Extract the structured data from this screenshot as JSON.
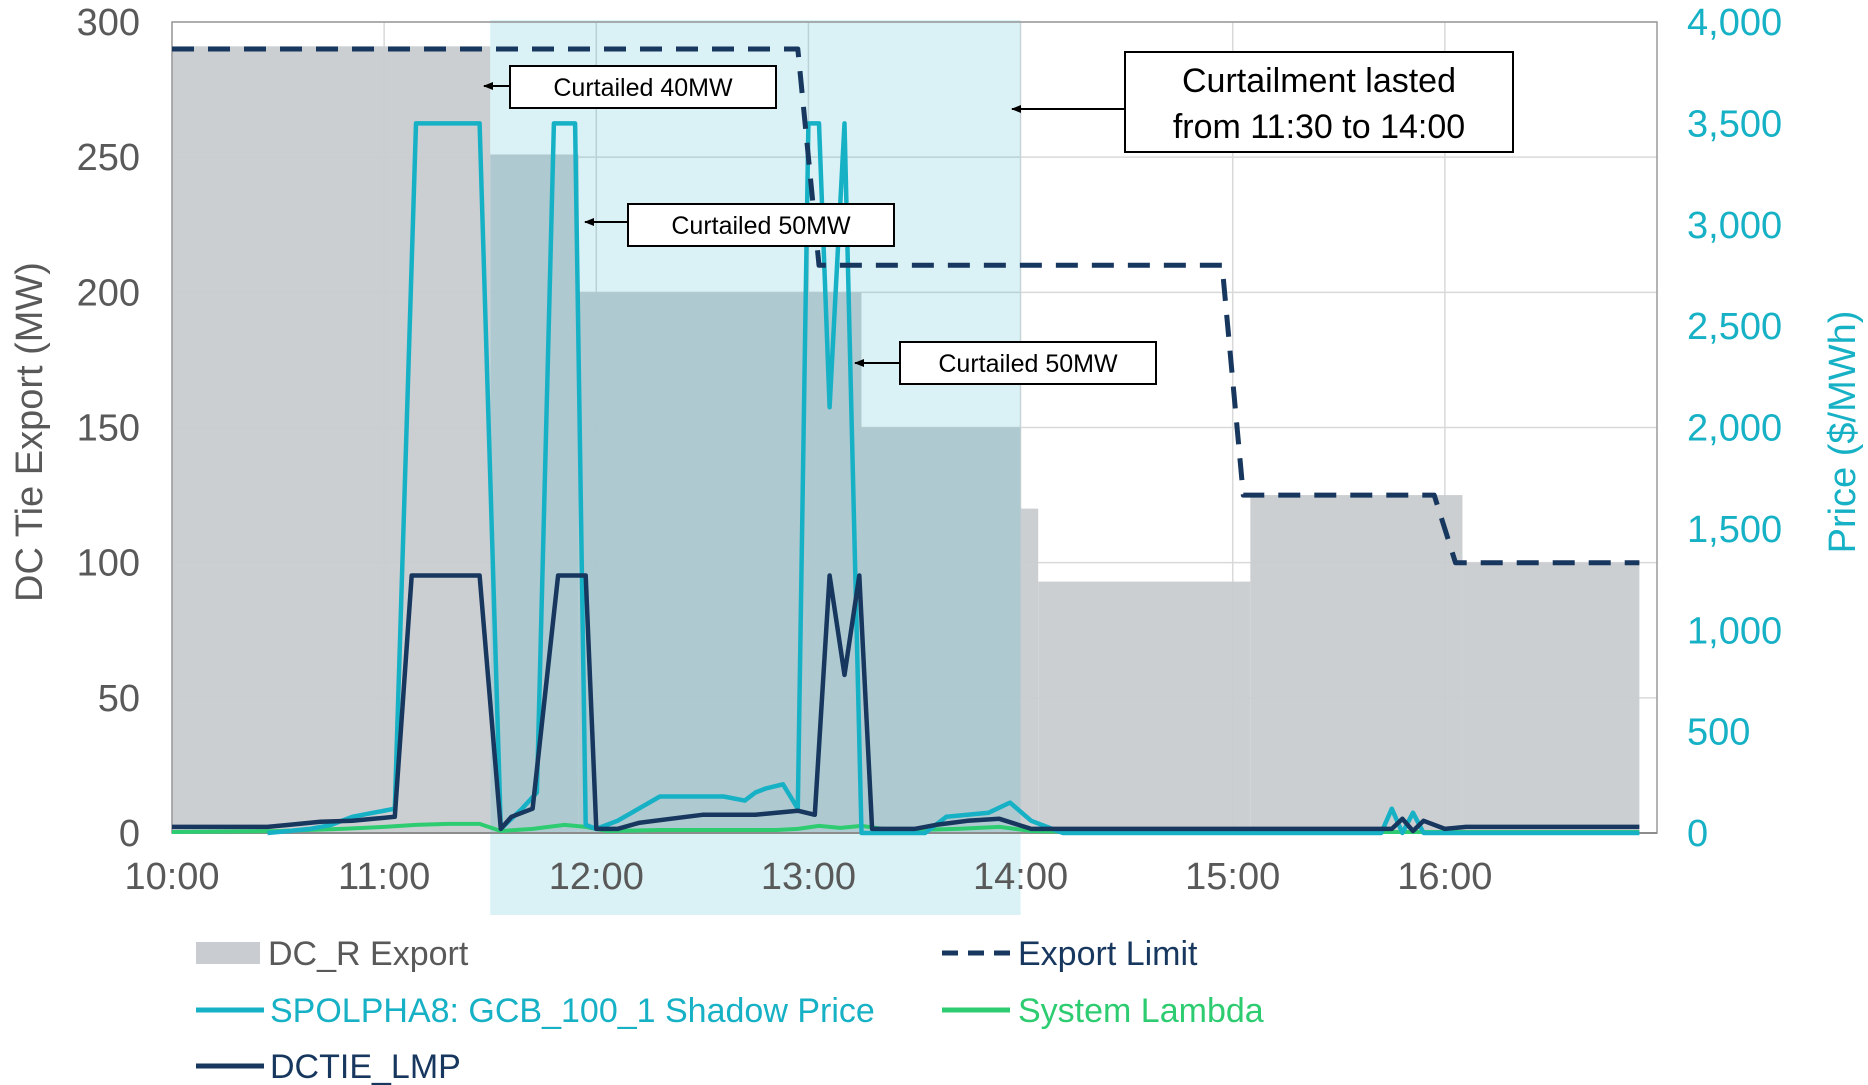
{
  "chart_data": {
    "type": "bar+line",
    "x_ticks": [
      "10:00",
      "11:00",
      "12:00",
      "13:00",
      "14:00",
      "15:00",
      "16:00"
    ],
    "x_range_hours": [
      10.0,
      17.0
    ],
    "left_axis": {
      "label": "DC Tie Export (MW)",
      "ticks": [
        "0",
        "50",
        "100",
        "150",
        "200",
        "250",
        "300"
      ],
      "range": [
        0,
        300
      ]
    },
    "right_axis": {
      "label": "Price ($/MWh)",
      "ticks": [
        "0",
        "500",
        "1,000",
        "1,500",
        "2,000",
        "2,500",
        "3,000",
        "3,500",
        "4,000"
      ],
      "range": [
        0,
        4000
      ]
    },
    "curtailment_window": [
      11.5,
      14.0
    ],
    "series": [
      {
        "name": "DC_R Export",
        "type": "area-step",
        "axis": "left",
        "color": "#c9ccd0",
        "steps": [
          [
            10.0,
            11.5,
            291
          ],
          [
            11.5,
            11.917,
            251
          ],
          [
            11.917,
            13.25,
            200
          ],
          [
            13.25,
            14.0,
            150
          ],
          [
            14.0,
            14.083,
            120
          ],
          [
            14.083,
            15.083,
            93
          ],
          [
            15.083,
            16.083,
            125
          ],
          [
            16.083,
            16.917,
            100
          ]
        ]
      },
      {
        "name": "Export Limit",
        "type": "line-dashed",
        "axis": "left",
        "color": "#17375e",
        "x": [
          10.0,
          12.95,
          13.05,
          13.05,
          13.95,
          13.95,
          14.95,
          15.05,
          15.05,
          15.95,
          16.05,
          16.05,
          16.917
        ],
        "y": [
          290,
          290,
          210,
          210,
          210,
          210,
          210,
          125,
          125,
          125,
          100,
          100,
          100
        ]
      },
      {
        "name": "SPOLPHA8: GCB_100_1 Shadow Price",
        "type": "line",
        "axis": "right",
        "color": "#17b1c6",
        "x": [
          10.45,
          10.55,
          10.65,
          10.75,
          10.85,
          10.95,
          11.05,
          11.15,
          11.25,
          11.35,
          11.45,
          11.55,
          11.65,
          11.72,
          11.8,
          11.85,
          11.9,
          11.95,
          12.0,
          12.1,
          12.2,
          12.3,
          12.4,
          12.5,
          12.6,
          12.7,
          12.75,
          12.8,
          12.88,
          12.95,
          13.0,
          13.05,
          13.1,
          13.17,
          13.25,
          13.3,
          13.35,
          13.45,
          13.55,
          13.65,
          13.75,
          13.85,
          13.95,
          14.05,
          14.2,
          15.0,
          15.7,
          15.75,
          15.8,
          15.85,
          15.9,
          15.95,
          16.0,
          16.1,
          16.3,
          16.917
        ],
        "y": [
          0,
          10,
          20,
          40,
          80,
          100,
          120,
          3500,
          3500,
          3500,
          3500,
          20,
          120,
          200,
          3500,
          3500,
          3500,
          40,
          20,
          60,
          120,
          180,
          180,
          180,
          180,
          160,
          200,
          220,
          240,
          120,
          3500,
          3500,
          2100,
          3500,
          0,
          0,
          0,
          0,
          0,
          80,
          90,
          100,
          150,
          60,
          0,
          0,
          0,
          120,
          0,
          100,
          0,
          0,
          0,
          0,
          0,
          0
        ]
      },
      {
        "name": "System Lambda",
        "type": "line",
        "axis": "right",
        "color": "#2ecc71",
        "x": [
          10.0,
          10.5,
          10.8,
          11.0,
          11.15,
          11.3,
          11.45,
          11.55,
          11.7,
          11.85,
          11.95,
          12.05,
          12.3,
          12.6,
          12.85,
          12.95,
          13.05,
          13.15,
          13.25,
          13.35,
          13.5,
          13.7,
          13.9,
          14.05,
          14.3,
          15.0,
          16.0,
          16.917
        ],
        "y": [
          5,
          10,
          20,
          30,
          40,
          45,
          45,
          10,
          20,
          40,
          30,
          10,
          15,
          15,
          15,
          20,
          35,
          25,
          35,
          20,
          15,
          20,
          30,
          10,
          5,
          5,
          5,
          5
        ]
      },
      {
        "name": "DCTIE_LMP",
        "type": "line",
        "axis": "right",
        "color": "#17375e",
        "x": [
          10.0,
          10.45,
          10.55,
          10.7,
          10.85,
          10.95,
          11.05,
          11.13,
          11.25,
          11.35,
          11.45,
          11.55,
          11.6,
          11.7,
          11.82,
          11.88,
          11.95,
          12.0,
          12.1,
          12.2,
          12.35,
          12.5,
          12.65,
          12.75,
          12.85,
          12.95,
          13.03,
          13.1,
          13.17,
          13.24,
          13.3,
          13.4,
          13.5,
          13.6,
          13.75,
          13.9,
          14.05,
          14.2,
          15.0,
          15.7,
          15.75,
          15.8,
          15.85,
          15.9,
          16.0,
          16.1,
          16.5,
          16.917
        ],
        "y": [
          30,
          30,
          40,
          55,
          60,
          70,
          80,
          1270,
          1270,
          1270,
          1270,
          20,
          80,
          120,
          1270,
          1270,
          1270,
          20,
          20,
          50,
          70,
          90,
          90,
          90,
          100,
          110,
          90,
          1270,
          780,
          1270,
          20,
          20,
          20,
          40,
          60,
          70,
          20,
          20,
          20,
          20,
          20,
          70,
          10,
          60,
          20,
          30,
          30,
          30
        ]
      }
    ],
    "annotations": [
      {
        "text": "Curtailed 40MW"
      },
      {
        "text": "Curtailed 50MW"
      },
      {
        "text": "Curtailed 50MW"
      },
      {
        "text_lines": [
          "Curtailment lasted",
          "from 11:30 to 14:00"
        ]
      }
    ],
    "legend": {
      "placement": "bottom",
      "items": [
        "DC_R Export",
        "Export Limit",
        "SPOLPHA8: GCB_100_1 Shadow Price",
        "System Lambda",
        "DCTIE_LMP"
      ]
    }
  },
  "colors": {
    "bar": "#c9ccd0",
    "highlight": "#17b1c6",
    "dark": "#17375e",
    "lambda": "#2ecc71",
    "axis_text": "#595959"
  }
}
